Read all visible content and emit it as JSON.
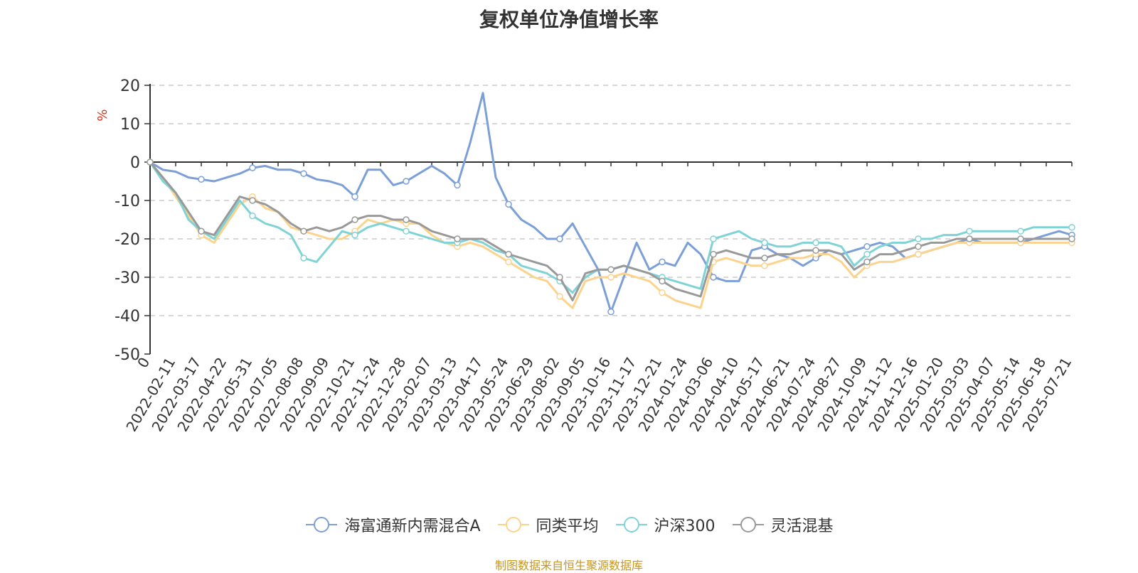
{
  "chart_data": {
    "type": "line",
    "title": "复权单位净值增长率",
    "ylabel": "%",
    "ylim": [
      -50,
      20
    ],
    "yticks": [
      20,
      10,
      0,
      -10,
      -20,
      -30,
      -40,
      -50
    ],
    "grid": true,
    "legend_position": "bottom",
    "x_tick_labels": [
      "0",
      "2022-02-11",
      "2022-03-17",
      "2022-04-22",
      "2022-05-31",
      "2022-07-05",
      "2022-08-08",
      "2022-09-09",
      "2022-10-21",
      "2022-11-24",
      "2022-12-28",
      "2023-02-07",
      "2023-03-13",
      "2023-04-17",
      "2023-05-24",
      "2023-06-29",
      "2023-08-02",
      "2023-09-05",
      "2023-10-16",
      "2023-11-17",
      "2023-12-21",
      "2024-01-24",
      "2024-03-06",
      "2024-04-10",
      "2024-05-17",
      "2024-06-21",
      "2024-07-24",
      "2024-08-27",
      "2024-10-09",
      "2024-11-12",
      "2024-12-16",
      "2025-01-20",
      "2025-03-03",
      "2025-04-07",
      "2025-05-14",
      "2025-06-18",
      "2025-07-21"
    ],
    "x": [
      0,
      0.5,
      1,
      1.5,
      2,
      2.5,
      3,
      3.5,
      4,
      4.5,
      5,
      5.5,
      6,
      6.5,
      7,
      7.5,
      8,
      8.5,
      9,
      9.5,
      10,
      10.5,
      11,
      11.5,
      12,
      12.5,
      13,
      13.5,
      14,
      14.5,
      15,
      15.5,
      16,
      16.5,
      17,
      17.5,
      18,
      18.5,
      19,
      19.5,
      20,
      20.5,
      21,
      21.5,
      22,
      22.5,
      23,
      23.5,
      24,
      24.5,
      25,
      25.5,
      26,
      26.5,
      27,
      27.5,
      28,
      28.5,
      29,
      29.5,
      30,
      30.5,
      31,
      31.5,
      32,
      32.5,
      33,
      33.5,
      34,
      34.5,
      35,
      35.5,
      36
    ],
    "series": [
      {
        "name": "海富通新内需混合A",
        "color": "#7b9fd6",
        "values": [
          0,
          -2,
          -2.5,
          -4,
          -4.5,
          -5,
          -4,
          -3,
          -1.5,
          -1,
          -2,
          -2,
          -3,
          -4.5,
          -5,
          -6,
          -9,
          -2,
          -2,
          -6,
          -5,
          -3,
          -1,
          -3,
          -6,
          5,
          18,
          -4,
          -11,
          -15,
          -17,
          -20,
          -20,
          -16,
          -22,
          -28,
          -39,
          -30,
          -21,
          -28,
          -26,
          -27,
          -21,
          -24,
          -30,
          -31,
          -31,
          -23,
          -22,
          -24,
          -25,
          -27,
          -25,
          -23,
          -24,
          -23,
          -22,
          -21,
          -22,
          -25,
          -24,
          -23,
          -22,
          -21,
          -20,
          -21,
          -21,
          -21,
          -21,
          -20,
          -19,
          -18,
          -19
        ]
      },
      {
        "name": "同类平均",
        "color": "#fbd38d",
        "values": [
          0,
          -4,
          -9,
          -14,
          -19,
          -21,
          -16,
          -11,
          -9,
          -12,
          -13,
          -17,
          -18,
          -19,
          -20,
          -20,
          -18,
          -15,
          -16,
          -15,
          -16,
          -16,
          -19,
          -21,
          -22,
          -21,
          -22,
          -24,
          -26,
          -28,
          -30,
          -31,
          -35,
          -38,
          -31,
          -30,
          -30,
          -29,
          -30,
          -31,
          -34,
          -36,
          -37,
          -38,
          -26,
          -25,
          -26,
          -27,
          -27,
          -26,
          -25,
          -25,
          -24,
          -24,
          -26,
          -30,
          -27,
          -26,
          -26,
          -25,
          -24,
          -23,
          -22,
          -21,
          -21,
          -21,
          -21,
          -21,
          -21,
          -21,
          -21,
          -21,
          -21
        ]
      },
      {
        "name": "沪深300",
        "color": "#7fd3d6",
        "values": [
          0,
          -5,
          -8,
          -15,
          -18,
          -20,
          -15,
          -10,
          -14,
          -16,
          -17,
          -19,
          -25,
          -26,
          -22,
          -18,
          -19,
          -17,
          -16,
          -17,
          -18,
          -19,
          -20,
          -21,
          -21,
          -20,
          -21,
          -23,
          -24,
          -27,
          -28,
          -29,
          -31,
          -34,
          -30,
          -28,
          -28,
          -27,
          -28,
          -29,
          -30,
          -31,
          -32,
          -33,
          -20,
          -19,
          -18,
          -20,
          -21,
          -22,
          -22,
          -21,
          -21,
          -21,
          -22,
          -27,
          -24,
          -22,
          -21,
          -21,
          -20,
          -20,
          -19,
          -19,
          -18,
          -18,
          -18,
          -18,
          -18,
          -17,
          -17,
          -17,
          -17
        ]
      },
      {
        "name": "灵活混基",
        "color": "#999999",
        "values": [
          0,
          -4,
          -8,
          -13,
          -18,
          -19,
          -14,
          -9,
          -10,
          -11,
          -13,
          -16,
          -18,
          -17,
          -18,
          -17,
          -15,
          -14,
          -14,
          -15,
          -15,
          -16,
          -18,
          -19,
          -20,
          -20,
          -20,
          -22,
          -24,
          -25,
          -26,
          -27,
          -30,
          -36,
          -29,
          -28,
          -28,
          -27,
          -28,
          -29,
          -31,
          -33,
          -34,
          -35,
          -24,
          -23,
          -24,
          -25,
          -25,
          -24,
          -24,
          -23,
          -23,
          -23,
          -24,
          -28,
          -26,
          -24,
          -24,
          -23,
          -22,
          -21,
          -21,
          -20,
          -20,
          -20,
          -20,
          -20,
          -20,
          -20,
          -20,
          -20,
          -20
        ]
      }
    ]
  },
  "source_text": "制图数据来自恒生聚源数据库"
}
